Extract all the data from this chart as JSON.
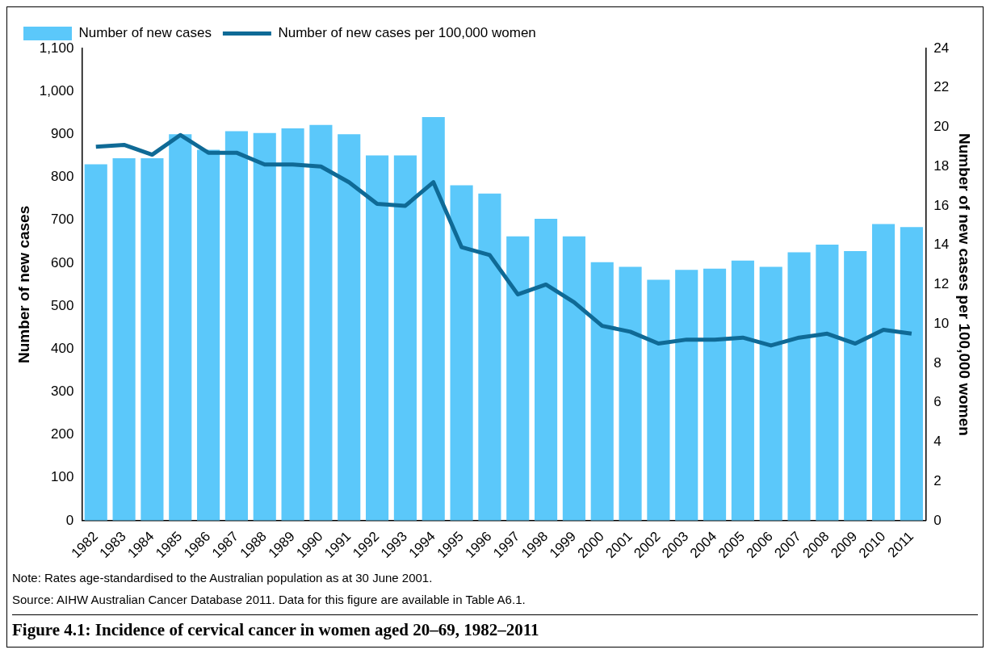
{
  "chart_data": {
    "type": "bar",
    "title": "Figure 4.1: Incidence of cervical cancer in women aged 20–69, 1982–2011",
    "ylabel": "Number of new cases",
    "y2label": "Number of new cases per 100,000 women",
    "annotations": [
      "Note: Rates age-standardised to the Australian population as at 30 June 2001.",
      "Source: AIHW Australian Cancer Database 2011. Data for this figure are available in Table A6.1."
    ],
    "categories": [
      "1982",
      "1983",
      "1984",
      "1985",
      "1986",
      "1987",
      "1988",
      "1989",
      "1990",
      "1991",
      "1992",
      "1993",
      "1994",
      "1995",
      "1996",
      "1997",
      "1998",
      "1999",
      "2000",
      "2001",
      "2002",
      "2003",
      "2004",
      "2005",
      "2006",
      "2007",
      "2008",
      "2009",
      "2010",
      "2011"
    ],
    "series": [
      {
        "name": "Number of new cases",
        "color": "#5bc8fa",
        "values": [
          830,
          844,
          844,
          900,
          864,
          907,
          903,
          914,
          922,
          900,
          851,
          851,
          940,
          781,
          762,
          662,
          703,
          662,
          602,
          591,
          561,
          584,
          587,
          606,
          591,
          625,
          643,
          628,
          691,
          684
        ]
      },
      {
        "name": "Number of new cases per 100,000 women",
        "type": "line",
        "axis": "y2",
        "color": "#0f6a96",
        "values": [
          19.0,
          19.1,
          18.6,
          19.6,
          18.7,
          18.7,
          18.1,
          18.1,
          18.0,
          17.2,
          16.1,
          16.0,
          17.2,
          13.9,
          13.5,
          11.5,
          12.0,
          11.1,
          9.9,
          9.6,
          9.0,
          9.2,
          9.2,
          9.3,
          8.9,
          9.3,
          9.5,
          9.0,
          9.7,
          9.5
        ]
      }
    ],
    "ylim": [
      0,
      1100
    ],
    "yticks": [
      0,
      100,
      200,
      300,
      400,
      500,
      600,
      700,
      800,
      900,
      {
        "value": 1000,
        "label": "1,000"
      },
      {
        "value": 1100,
        "label": "1,100"
      }
    ],
    "y2lim": [
      0,
      24
    ],
    "y2ticks": [
      0,
      2,
      4,
      6,
      8,
      10,
      12,
      14,
      16,
      18,
      20,
      22,
      24
    ],
    "grid": false,
    "legend": "top left",
    "marker": "none",
    "line_style": "solid"
  }
}
